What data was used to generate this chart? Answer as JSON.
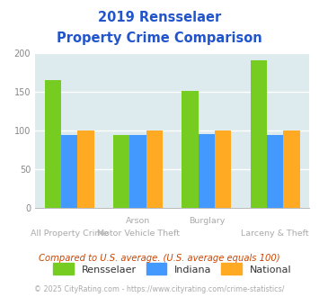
{
  "title_line1": "2019 Rensselaer",
  "title_line2": "Property Crime Comparison",
  "rensselaer": [
    165,
    94,
    152,
    191
  ],
  "indiana": [
    94,
    94,
    95,
    94
  ],
  "national": [
    100,
    100,
    100,
    100
  ],
  "bar_colors": {
    "rensselaer": "#77cc22",
    "indiana": "#4499ff",
    "national": "#ffaa22"
  },
  "ylim": [
    0,
    200
  ],
  "yticks": [
    0,
    50,
    100,
    150,
    200
  ],
  "bg_color": "#ddeaee",
  "title_color": "#2255cc",
  "label_color": "#aaaaaa",
  "legend_labels": [
    "Rensselaer",
    "Indiana",
    "National"
  ],
  "note": "Compared to U.S. average. (U.S. average equals 100)",
  "copyright": "© 2025 CityRating.com - https://www.cityrating.com/crime-statistics/",
  "note_color": "#cc4400",
  "copyright_color": "#aaaaaa",
  "copyright_link_color": "#4499ff"
}
